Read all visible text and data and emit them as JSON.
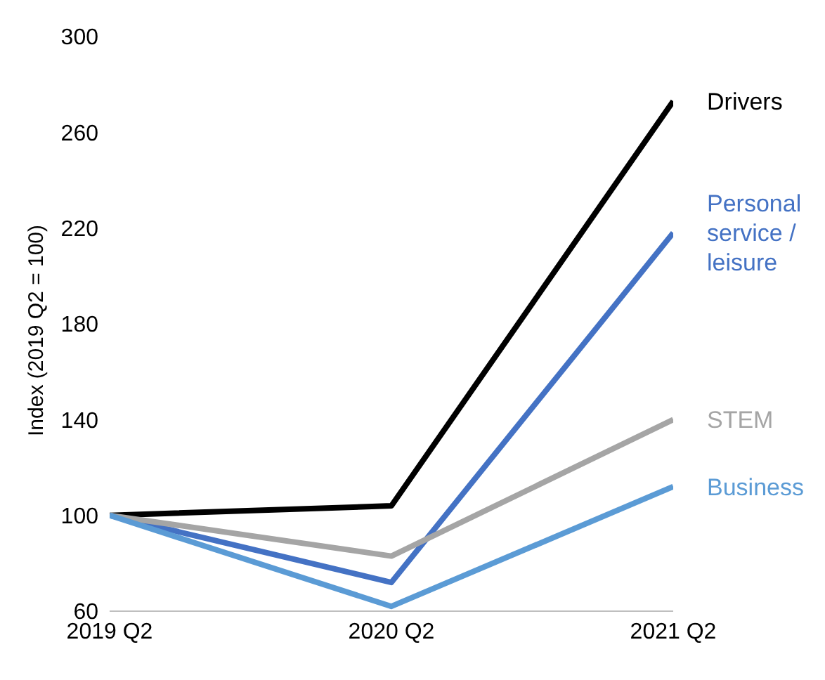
{
  "chart_data": {
    "type": "line",
    "ylabel": "Index (2019 Q2 = 100)",
    "categories": [
      "2019 Q2",
      "2020 Q2",
      "2021 Q2"
    ],
    "series": [
      {
        "name": "Drivers",
        "color": "#000000",
        "values": [
          100,
          104,
          273
        ]
      },
      {
        "name": "Personal service / leisure",
        "color": "#4472c4",
        "values": [
          100,
          72,
          218
        ]
      },
      {
        "name": "STEM",
        "color": "#a5a5a5",
        "values": [
          100,
          83,
          140
        ]
      },
      {
        "name": "Business",
        "color": "#5b9bd5",
        "values": [
          100,
          62,
          112
        ]
      }
    ],
    "ylim": [
      60,
      300
    ],
    "yticks": [
      60,
      100,
      140,
      180,
      220,
      260,
      300
    ],
    "grid": false,
    "legend": false,
    "marker": "none",
    "line_style": "solid"
  }
}
